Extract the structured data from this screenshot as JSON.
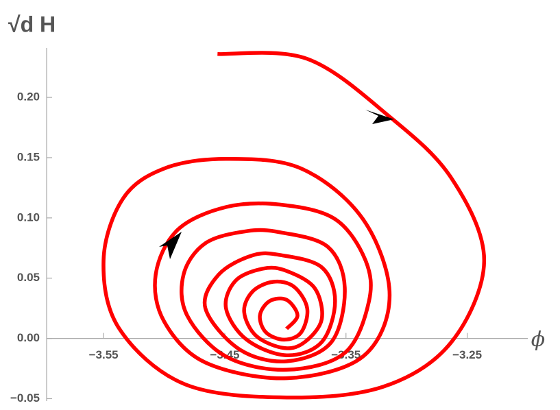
{
  "chart_data": {
    "type": "line",
    "xlabel": "ϕ",
    "ylabel": "√d H",
    "xlim": [
      -3.597,
      -3.2
    ],
    "ylim": [
      -0.052,
      0.241
    ],
    "xticks": [
      {
        "value": -3.55,
        "label": "−3.55"
      },
      {
        "value": -3.45,
        "label": "−3.45"
      },
      {
        "value": -3.35,
        "label": "−3.35"
      },
      {
        "value": -3.25,
        "label": "−3.25"
      }
    ],
    "yticks": [
      {
        "value": -0.05,
        "label": "−0.05"
      },
      {
        "value": 0,
        "label": "0.00"
      },
      {
        "value": 0.05,
        "label": "0.05"
      },
      {
        "value": 0.1,
        "label": "0.10"
      },
      {
        "value": 0.15,
        "label": "0.15"
      },
      {
        "value": 0.2,
        "label": "0.20"
      }
    ],
    "series": [
      {
        "color": "#ff0000",
        "x": [
          -3.456,
          -3.382,
          -3.314,
          -3.263,
          -3.236,
          -3.263,
          -3.319,
          -3.399,
          -3.483,
          -3.537,
          -3.55,
          -3.534,
          -3.5,
          -3.449,
          -3.387,
          -3.336,
          -3.314,
          -3.336,
          -3.399,
          -3.466,
          -3.5,
          -3.507,
          -3.489,
          -3.449,
          -3.404,
          -3.359,
          -3.334,
          -3.331,
          -3.351,
          -3.399,
          -3.449,
          -3.481,
          -3.484,
          -3.466,
          -3.432,
          -3.404,
          -3.365,
          -3.351,
          -3.362,
          -3.399,
          -3.438,
          -3.466,
          -3.455,
          -3.427,
          -3.403,
          -3.37,
          -3.359,
          -3.37,
          -3.399,
          -3.432,
          -3.449,
          -3.441,
          -3.418,
          -3.399,
          -3.376,
          -3.37,
          -3.384,
          -3.401,
          -3.424,
          -3.434,
          -3.427,
          -3.41,
          -3.393,
          -3.382,
          -3.387,
          -3.401,
          -3.416,
          -3.421,
          -3.413,
          -3.399,
          -3.39,
          -3.399
        ],
        "values": [
          0.236,
          0.232,
          0.184,
          0.133,
          0.065,
          -0.003,
          -0.04,
          -0.049,
          -0.038,
          0.008,
          0.065,
          0.116,
          0.141,
          0.149,
          0.141,
          0.099,
          0.036,
          -0.015,
          -0.033,
          -0.02,
          0.014,
          0.053,
          0.09,
          0.109,
          0.111,
          0.099,
          0.065,
          0.031,
          -0.012,
          -0.026,
          -0.015,
          0.019,
          0.053,
          0.079,
          0.089,
          0.088,
          0.076,
          0.042,
          -0.003,
          -0.019,
          -0.009,
          0.025,
          0.053,
          0.069,
          0.069,
          0.059,
          0.031,
          -0.003,
          -0.014,
          -0.001,
          0.025,
          0.048,
          0.058,
          0.056,
          0.042,
          0.016,
          -0.003,
          -0.008,
          0.002,
          0.022,
          0.039,
          0.047,
          0.043,
          0.025,
          0.005,
          -0.001,
          0.005,
          0.019,
          0.031,
          0.032,
          0.019,
          0.008
        ]
      }
    ]
  }
}
